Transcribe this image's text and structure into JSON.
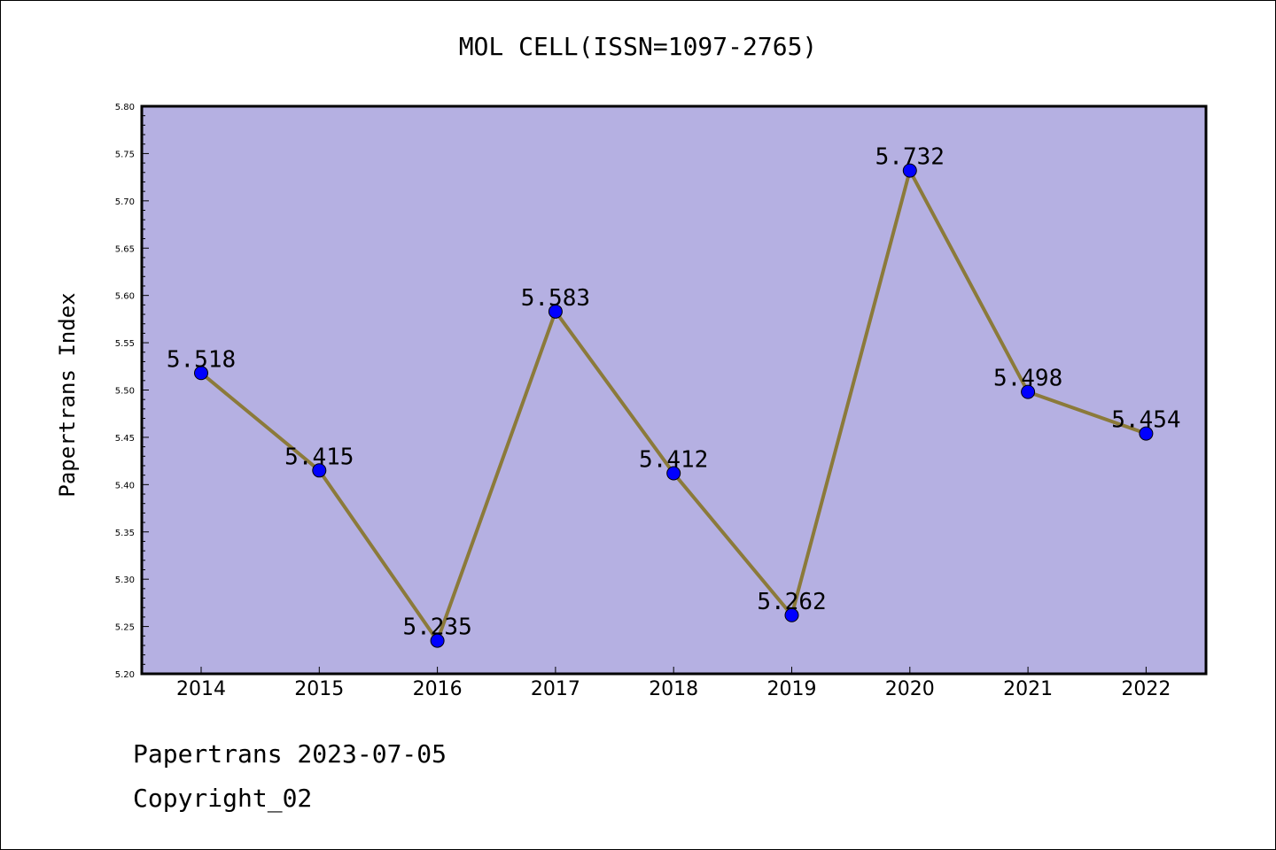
{
  "footer": {
    "line1": "Papertrans 2023-07-05",
    "line2": "Copyright_02"
  },
  "chart_data": {
    "type": "line",
    "title": "MOL CELL(ISSN=1097-2765)",
    "xlabel": "",
    "ylabel": "Papertrans Index",
    "categories": [
      "2014",
      "2015",
      "2016",
      "2017",
      "2018",
      "2019",
      "2020",
      "2021",
      "2022"
    ],
    "values": [
      5.518,
      5.415,
      5.235,
      5.583,
      5.412,
      5.262,
      5.732,
      5.498,
      5.454
    ],
    "data_labels": [
      "5.518",
      "5.415",
      "5.235",
      "5.583",
      "5.412",
      "5.262",
      "5.732",
      "5.498",
      "5.454"
    ],
    "ylim": [
      5.2,
      5.8
    ],
    "yticks": [
      "5.20",
      "5.25",
      "5.30",
      "5.35",
      "5.40",
      "5.45",
      "5.50",
      "5.55",
      "5.60",
      "5.65",
      "5.70",
      "5.75",
      "5.80"
    ],
    "grid": false,
    "colors": {
      "plot_background": "#b5b0e2",
      "line": "#8b7a3a",
      "marker": "#0000ff"
    }
  }
}
